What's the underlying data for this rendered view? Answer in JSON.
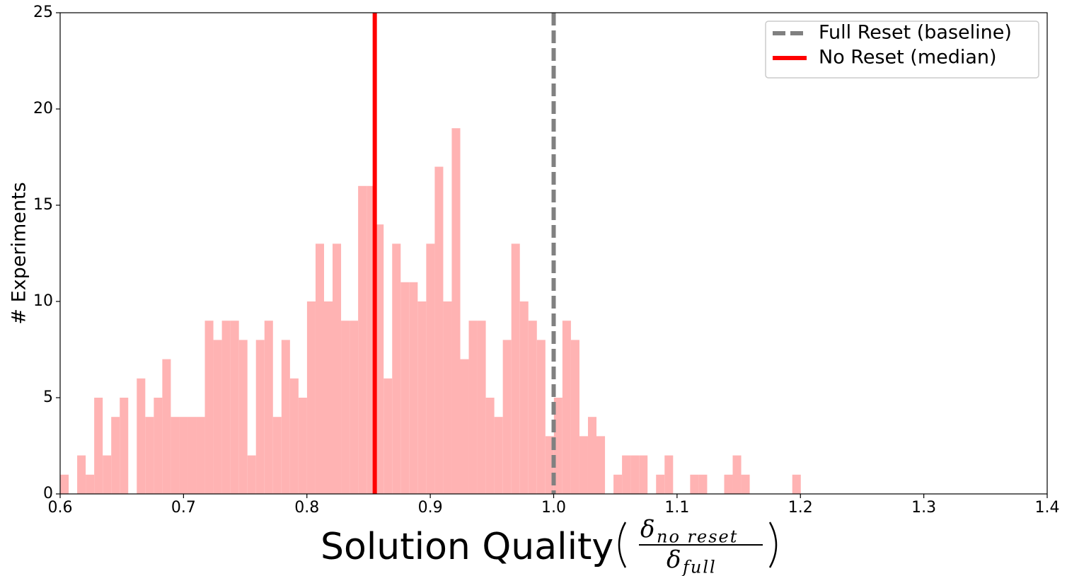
{
  "chart_data": {
    "type": "histogram",
    "xlabel": "Solution Quality",
    "xlabel_fraction": {
      "numerator": "δ",
      "numerator_sub": "no reset",
      "denominator": "δ",
      "denominator_sub": "full"
    },
    "ylabel": "# Experiments",
    "color": "#ffb3b3",
    "bins": [
      0.6,
      0.6069,
      0.6138,
      0.6207,
      0.6276,
      0.6345,
      0.6414,
      0.6483,
      0.6552,
      0.6621,
      0.669,
      0.6759,
      0.6828,
      0.6897,
      0.6966,
      0.7035,
      0.7104,
      0.7173,
      0.7242,
      0.7311,
      0.738,
      0.7449,
      0.7518,
      0.7587,
      0.7656,
      0.7725,
      0.7794,
      0.7863,
      0.7932,
      0.8001,
      0.807,
      0.8139,
      0.8208,
      0.8277,
      0.8346,
      0.8415,
      0.8484,
      0.8553,
      0.8622,
      0.8691,
      0.876,
      0.8829,
      0.8898,
      0.8967,
      0.9036,
      0.9105,
      0.9174,
      0.9243,
      0.9312,
      0.9381,
      0.945,
      0.9519,
      0.9588,
      0.9657,
      0.9726,
      0.9795,
      0.9864,
      0.9933,
      1.0002,
      1.0071,
      1.014,
      1.0209,
      1.0278,
      1.0347,
      1.0416,
      1.0485,
      1.0554,
      1.0623,
      1.0692,
      1.0761,
      1.083,
      1.0899,
      1.0968,
      1.1037,
      1.1106,
      1.1175,
      1.1244,
      1.1313,
      1.1382,
      1.1451,
      1.152,
      1.1589,
      1.1658,
      1.1727,
      1.1796,
      1.1865,
      1.1934,
      1.2003
    ],
    "values": [
      1,
      0,
      2,
      1,
      5,
      2,
      4,
      5,
      0,
      6,
      4,
      5,
      7,
      4,
      4,
      4,
      4,
      9,
      8,
      9,
      9,
      8,
      2,
      8,
      9,
      4,
      8,
      6,
      5,
      10,
      13,
      10,
      13,
      9,
      9,
      16,
      16,
      14,
      6,
      13,
      11,
      11,
      10,
      13,
      17,
      10,
      19,
      7,
      9,
      9,
      5,
      4,
      8,
      13,
      10,
      9,
      8,
      3,
      5,
      9,
      8,
      3,
      4,
      3,
      0,
      1,
      2,
      2,
      2,
      0,
      1,
      2,
      0,
      0,
      1,
      1,
      0,
      0,
      1,
      2,
      1,
      0,
      0,
      0,
      0,
      0,
      1
    ],
    "lines": [
      {
        "name": "Full Reset (baseline)",
        "x": 1.0,
        "color": "#808080",
        "style": "dashed"
      },
      {
        "name": "No Reset (median)",
        "x": 0.855,
        "color": "#ff0000",
        "style": "solid"
      }
    ],
    "legend": "upper right",
    "xlim": [
      0.6,
      1.4
    ],
    "xticks": [
      0.6,
      0.7,
      0.8,
      0.9,
      {
        "value": 1,
        "label": "1.0"
      },
      1.1,
      1.2,
      1.3,
      1.4
    ],
    "ylim": [
      0,
      25
    ],
    "yticks": [
      0,
      5,
      10,
      15,
      20,
      25
    ]
  }
}
